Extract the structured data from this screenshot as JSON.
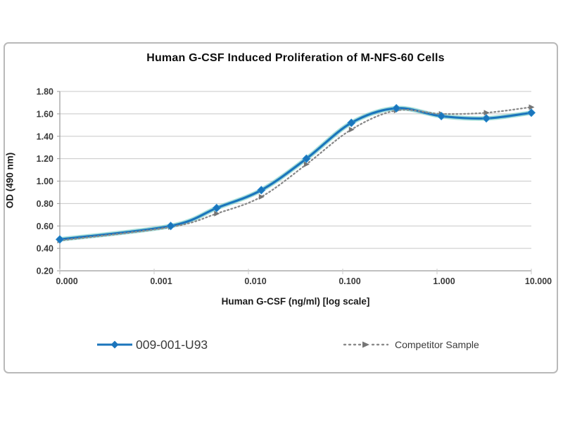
{
  "figure": {
    "border_color": "#b9b9b9",
    "background": "#ffffff"
  },
  "chart_data": {
    "type": "line",
    "title": "Human G-CSF Induced Proliferation of M-NFS-60 Cells",
    "xlabel": "Human G-CSF (ng/ml) [log scale]",
    "ylabel": "OD (490 nm)",
    "x_scale": "log",
    "x_ticks": [
      "0.000",
      "0.001",
      "0.010",
      "0.100",
      "1.000",
      "10.000"
    ],
    "y_ticks": [
      "0.20",
      "0.40",
      "0.60",
      "0.80",
      "1.00",
      "1.20",
      "1.40",
      "1.60",
      "1.80"
    ],
    "ylim": [
      0.2,
      1.8
    ],
    "grid": "horizontal",
    "legend_position": "bottom",
    "x": [
      0,
      0.0015,
      0.0046,
      0.0137,
      0.0412,
      0.1235,
      0.3704,
      1.1111,
      3.3333,
      10
    ],
    "series": [
      {
        "name": "009-001-U93",
        "color": "#1b75bc",
        "glow_color": "#5fc4bb",
        "line_style": "solid",
        "marker": "diamond",
        "values": [
          0.48,
          0.6,
          0.76,
          0.92,
          1.2,
          1.52,
          1.65,
          1.58,
          1.56,
          1.61
        ]
      },
      {
        "name": "Competitor Sample",
        "color": "#8a8a8a",
        "marker_color": "#757575",
        "line_style": "dotted",
        "marker": "triangle-right",
        "values": [
          0.47,
          0.59,
          0.71,
          0.86,
          1.15,
          1.46,
          1.63,
          1.6,
          1.61,
          1.66
        ]
      }
    ]
  },
  "colors": {
    "gridline": "#c8c8c8",
    "axis_line": "#9a9a9a",
    "tick_text": "#3a3a3a",
    "title_text": "#0d0d0d"
  }
}
